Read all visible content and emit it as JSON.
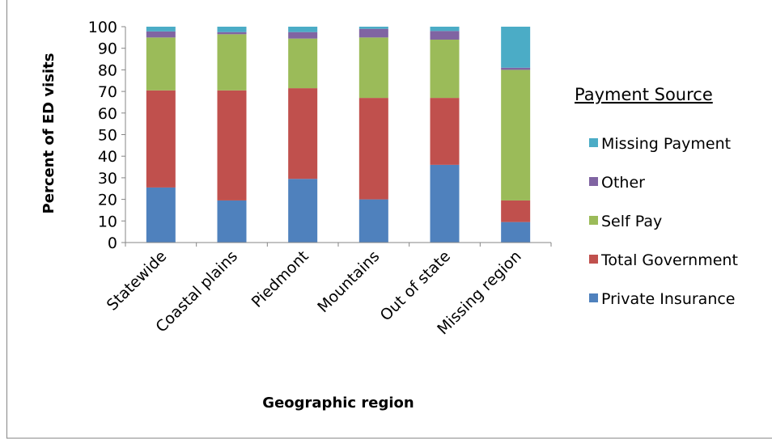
{
  "chart_data": {
    "type": "stacked_bar",
    "y_label": "Percent of ED visits",
    "x_label": "Geographic region",
    "legend_title": "Payment Source",
    "categories": [
      "Statewide",
      "Coastal plains",
      "Piedmont",
      "Mountains",
      "Out of state",
      "Missing region"
    ],
    "series": [
      {
        "name": "Private Insurance",
        "color": "#4f81bd",
        "values": [
          25.5,
          19.5,
          29.5,
          20,
          36,
          9.5
        ]
      },
      {
        "name": "Total Government",
        "color": "#c0504d",
        "values": [
          45,
          51,
          42,
          47,
          31,
          10
        ]
      },
      {
        "name": "Self Pay",
        "color": "#9bbb59",
        "values": [
          24.5,
          26,
          23,
          28,
          27,
          60.5
        ]
      },
      {
        "name": "Other",
        "color": "#8064a2",
        "values": [
          2.8,
          1,
          3,
          4,
          4,
          1
        ]
      },
      {
        "name": "Missing Payment",
        "color": "#4bacc6",
        "values": [
          2.2,
          2.5,
          2.5,
          1,
          2,
          19
        ]
      }
    ],
    "ylim": [
      0,
      100
    ],
    "yticks": [
      0,
      10,
      20,
      30,
      40,
      50,
      60,
      70,
      80,
      90,
      100
    ],
    "legend": "right"
  }
}
